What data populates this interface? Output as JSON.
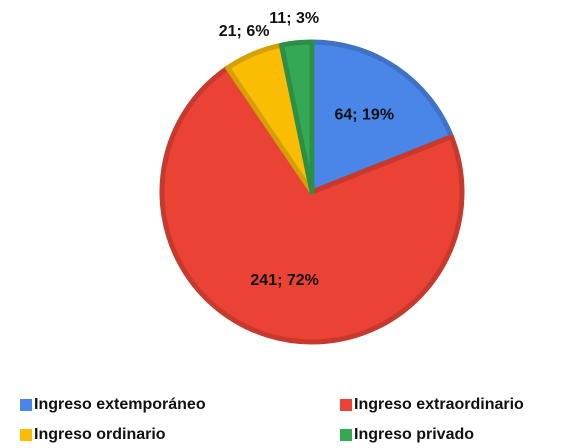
{
  "chart_data": {
    "type": "pie",
    "categories": [
      "Ingreso extemporáneo",
      "Ingreso extraordinario",
      "Ingreso ordinario",
      "Ingreso privado"
    ],
    "values": [
      64,
      241,
      21,
      11
    ],
    "value_labels": [
      "64; 19%",
      "241; 72%",
      "21; 6%",
      "11; 3%"
    ],
    "colors": [
      "#4a86e8",
      "#ea4335",
      "#fbbc04",
      "#34a853"
    ],
    "legend": "bottom"
  }
}
